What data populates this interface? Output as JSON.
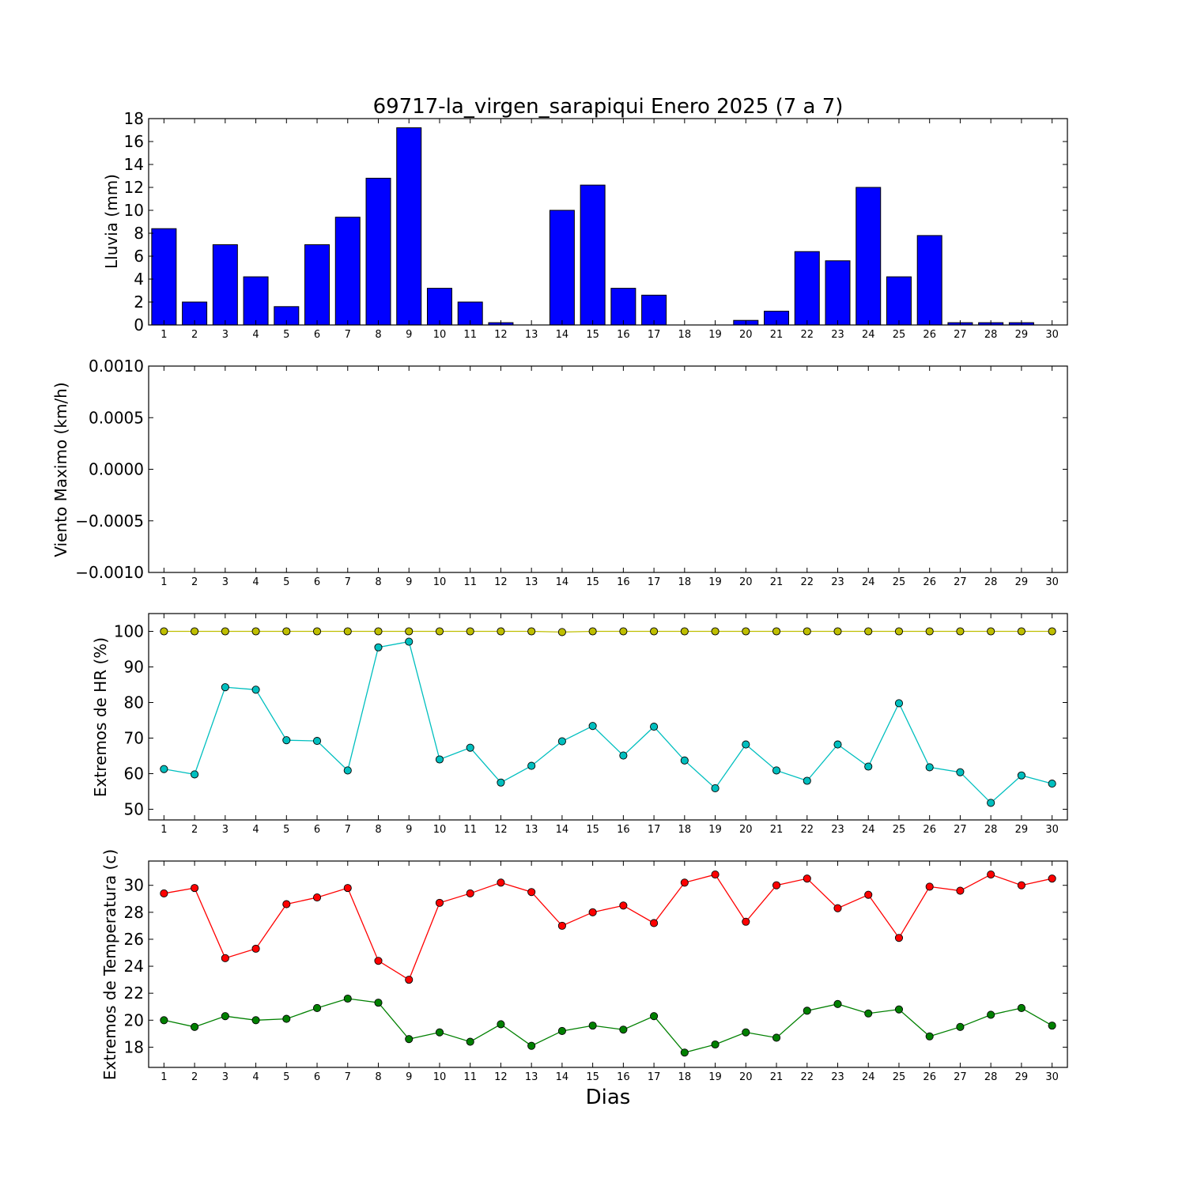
{
  "figure": {
    "title": "69717-la_virgen_sarapiqui Enero 2025  (7 a 7)",
    "xlabel": "Dias"
  },
  "chart_data": [
    {
      "type": "bar",
      "ylabel": "Lluvia (mm)",
      "ylim": [
        0,
        18
      ],
      "yticks": [
        "0",
        "2",
        "4",
        "6",
        "8",
        "10",
        "12",
        "14",
        "16",
        "18"
      ],
      "xticks": [
        "1",
        "2",
        "3",
        "4",
        "5",
        "6",
        "7",
        "8",
        "9",
        "10",
        "11",
        "12",
        "13",
        "14",
        "15",
        "16",
        "17",
        "18",
        "19",
        "20",
        "21",
        "22",
        "23",
        "24",
        "25",
        "26",
        "27",
        "28",
        "29",
        "30"
      ],
      "grid": false,
      "series": [
        {
          "color": "#0000ff",
          "values": [
            8.4,
            2.0,
            7.0,
            4.2,
            1.6,
            7.0,
            9.4,
            12.8,
            17.2,
            3.2,
            2.0,
            0.2,
            0.0,
            10.0,
            12.2,
            3.2,
            2.6,
            0.0,
            0.0,
            0.4,
            1.2,
            6.4,
            5.6,
            12.0,
            4.2,
            7.8,
            0.2,
            0.2,
            0.2,
            0.0
          ]
        }
      ]
    },
    {
      "type": "line",
      "ylabel": "Viento Maximo (km/h)",
      "ylim": [
        -0.001,
        0.001
      ],
      "yticks": [
        "−0.0010",
        "−0.0005",
        "0.0000",
        "0.0005",
        "0.0010"
      ],
      "xticks": [
        "1",
        "2",
        "3",
        "4",
        "5",
        "6",
        "7",
        "8",
        "9",
        "10",
        "11",
        "12",
        "13",
        "14",
        "15",
        "16",
        "17",
        "18",
        "19",
        "20",
        "21",
        "22",
        "23",
        "24",
        "25",
        "26",
        "27",
        "28",
        "29",
        "30"
      ],
      "grid": false,
      "series": []
    },
    {
      "type": "line",
      "ylabel": "Extremos de HR (%)",
      "ylim": [
        47,
        105
      ],
      "yticks": [
        "50",
        "60",
        "70",
        "80",
        "90",
        "100"
      ],
      "xticks": [
        "1",
        "2",
        "3",
        "4",
        "5",
        "6",
        "7",
        "8",
        "9",
        "10",
        "11",
        "12",
        "13",
        "14",
        "15",
        "16",
        "17",
        "18",
        "19",
        "20",
        "21",
        "22",
        "23",
        "24",
        "25",
        "26",
        "27",
        "28",
        "29",
        "30"
      ],
      "grid": false,
      "series": [
        {
          "color": "#bfbf00",
          "values": [
            100,
            100,
            100,
            100,
            100,
            100,
            100,
            100,
            100,
            100,
            100,
            100,
            100,
            99.8,
            100,
            100,
            100,
            100,
            100,
            100,
            100,
            100,
            100,
            100,
            100,
            100,
            100,
            100,
            100,
            100
          ]
        },
        {
          "color": "#00bfbf",
          "values": [
            61.3,
            59.8,
            84.3,
            83.6,
            69.4,
            69.2,
            60.9,
            95.5,
            97.1,
            64.0,
            67.3,
            57.5,
            62.2,
            69.1,
            73.4,
            65.1,
            73.2,
            63.7,
            55.9,
            68.2,
            60.9,
            58.0,
            68.2,
            62.0,
            79.8,
            61.8,
            60.4,
            51.8,
            59.5,
            57.2
          ]
        }
      ]
    },
    {
      "type": "line",
      "ylabel": "Extremos de Temperatura (c)",
      "ylim": [
        16.5,
        31.8
      ],
      "yticks": [
        "18",
        "20",
        "22",
        "24",
        "26",
        "28",
        "30"
      ],
      "xticks": [
        "1",
        "2",
        "3",
        "4",
        "5",
        "6",
        "7",
        "8",
        "9",
        "10",
        "11",
        "12",
        "13",
        "14",
        "15",
        "16",
        "17",
        "18",
        "19",
        "20",
        "21",
        "22",
        "23",
        "24",
        "25",
        "26",
        "27",
        "28",
        "29",
        "30"
      ],
      "grid": false,
      "series": [
        {
          "color": "#ff0000",
          "values": [
            29.4,
            29.8,
            24.6,
            25.3,
            28.6,
            29.1,
            29.8,
            24.4,
            23.0,
            28.7,
            29.4,
            30.2,
            29.5,
            27.0,
            28.0,
            28.5,
            27.2,
            30.2,
            30.8,
            27.3,
            30.0,
            30.5,
            28.3,
            29.3,
            26.1,
            29.9,
            29.6,
            30.8,
            30.0,
            30.5
          ]
        },
        {
          "color": "#008000",
          "values": [
            20.0,
            19.5,
            20.3,
            20.0,
            20.1,
            20.9,
            21.6,
            21.3,
            18.6,
            19.1,
            18.4,
            19.7,
            18.1,
            19.2,
            19.6,
            19.3,
            20.3,
            17.6,
            18.2,
            19.1,
            18.7,
            20.7,
            21.2,
            20.5,
            20.8,
            18.8,
            19.5,
            20.4,
            20.9,
            19.6
          ]
        }
      ]
    }
  ]
}
